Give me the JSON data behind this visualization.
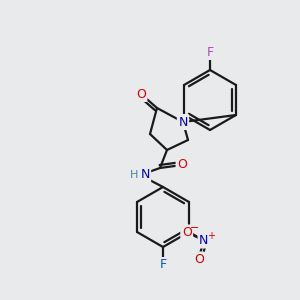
{
  "background_color": "#e8eaec",
  "bond_color": "#1a1a1a",
  "atom_colors": {
    "O": "#dd0000",
    "N": "#0000cc",
    "F_top": "#bb44bb",
    "F_bot": "#0055cc",
    "H": "#448899",
    "plus": "#dd0000",
    "minus": "#dd0000"
  },
  "figsize": [
    3.0,
    3.0
  ],
  "dpi": 100
}
